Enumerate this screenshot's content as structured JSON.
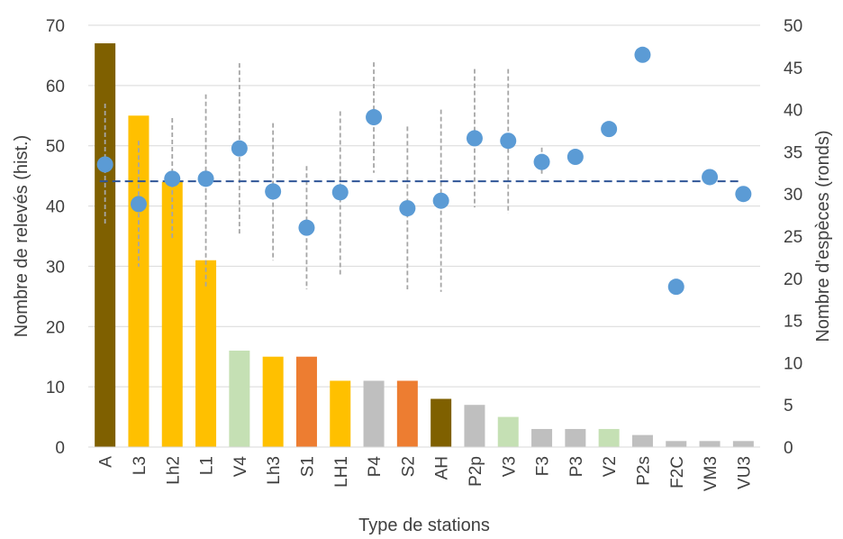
{
  "chart_data": {
    "type": "bar",
    "xlabel": "Type de stations",
    "ylabel": "Nombre de relevés (hist.)",
    "y2label": "Nombre d'espèces (ronds)",
    "ylim": [
      0,
      70
    ],
    "y2lim": [
      0,
      50
    ],
    "y_ticks": [
      "0",
      "10",
      "20",
      "30",
      "40",
      "50",
      "60",
      "70"
    ],
    "y2_ticks": [
      "0",
      "5",
      "10",
      "15",
      "20",
      "25",
      "30",
      "35",
      "40",
      "45",
      "50"
    ],
    "grid": true,
    "categories": [
      "A",
      "L3",
      "Lh2",
      "L1",
      "V4",
      "Lh3",
      "S1",
      "LH1",
      "P4",
      "S2",
      "AH",
      "P2p",
      "V3",
      "F3",
      "P3",
      "V2",
      "P2s",
      "F2C",
      "VM3",
      "VU3"
    ],
    "bar_values": [
      67,
      55,
      44,
      31,
      16,
      15,
      15,
      11,
      11,
      11,
      8,
      7,
      5,
      3,
      3,
      3,
      2,
      1,
      1,
      1
    ],
    "bar_colors": [
      "#7f6000",
      "#ffc000",
      "#ffc000",
      "#ffc000",
      "#c5e0b4",
      "#ffc000",
      "#ed7d31",
      "#ffc000",
      "#bfbfbf",
      "#ed7d31",
      "#7f6000",
      "#bfbfbf",
      "#c5e0b4",
      "#bfbfbf",
      "#bfbfbf",
      "#c5e0b4",
      "#bfbfbf",
      "#bfbfbf",
      "#bfbfbf",
      "#bfbfbf"
    ],
    "species_values": [
      33.5,
      28.8,
      31.8,
      31.8,
      35.4,
      30.3,
      26.0,
      30.2,
      39.1,
      28.3,
      29.2,
      36.6,
      36.3,
      33.8,
      34.4,
      37.7,
      46.5,
      19.0,
      32.0,
      30.0
    ],
    "error_low": [
      26.3,
      21.4,
      24.6,
      19.0,
      25.2,
      22.1,
      18.7,
      20.3,
      32.5,
      18.7,
      18.4,
      28.4,
      27.7,
      32.1,
      null,
      null,
      null,
      null,
      null,
      null
    ],
    "error_high": [
      40.7,
      36.3,
      39.0,
      41.8,
      45.5,
      38.4,
      33.3,
      39.8,
      45.6,
      38.0,
      40.0,
      44.8,
      44.8,
      35.5,
      null,
      null,
      null,
      null,
      null,
      null
    ],
    "reference_line_y2": 31.5,
    "colors": {
      "points": "#5b9bd5",
      "reference_line": "#2f5597",
      "error_bars": "#a6a6a6",
      "grid": "#d9d9d9",
      "text": "#404040"
    }
  }
}
